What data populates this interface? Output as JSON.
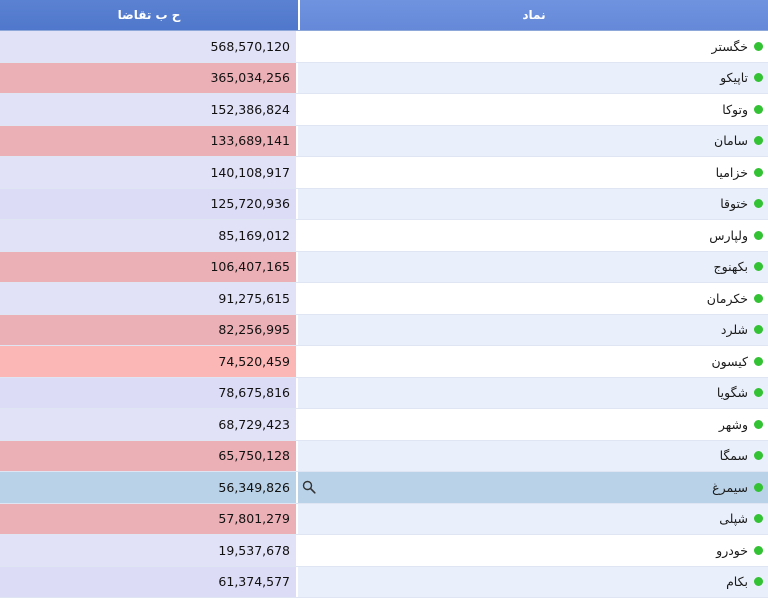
{
  "header": {
    "bid_col": "ح ب تقاضا",
    "symbol_col": "نماد"
  },
  "rows": [
    {
      "symbol": "خگستر",
      "bid": "568,570,120",
      "tone": "lav"
    },
    {
      "symbol": "تاپیکو",
      "bid": "365,034,256",
      "tone": "red"
    },
    {
      "symbol": "وتوکا",
      "bid": "152,386,824",
      "tone": "lav"
    },
    {
      "symbol": "سامان",
      "bid": "133,689,141",
      "tone": "red"
    },
    {
      "symbol": "خزامیا",
      "bid": "140,108,917",
      "tone": "lav"
    },
    {
      "symbol": "ختوقا",
      "bid": "125,720,936",
      "tone": "lav2"
    },
    {
      "symbol": "ولپارس",
      "bid": "85,169,012",
      "tone": "lav"
    },
    {
      "symbol": "بکهنوج",
      "bid": "106,407,165",
      "tone": "red"
    },
    {
      "symbol": "خکرمان",
      "bid": "91,275,615",
      "tone": "lav"
    },
    {
      "symbol": "شلرد",
      "bid": "82,256,995",
      "tone": "red"
    },
    {
      "symbol": "کیسون",
      "bid": "74,520,459",
      "tone": "pink"
    },
    {
      "symbol": "شگویا",
      "bid": "78,675,816",
      "tone": "lav2"
    },
    {
      "symbol": "وشهر",
      "bid": "68,729,423",
      "tone": "lav"
    },
    {
      "symbol": "سمگا",
      "bid": "65,750,128",
      "tone": "red"
    },
    {
      "symbol": "سیمرغ",
      "bid": "56,349,826",
      "tone": "sel",
      "selected": true
    },
    {
      "symbol": "شپلی",
      "bid": "57,801,279",
      "tone": "red"
    },
    {
      "symbol": "خودرو",
      "bid": "19,537,678",
      "tone": "lav"
    },
    {
      "symbol": "بکام",
      "bid": "61,374,577",
      "tone": "lav2"
    }
  ],
  "colors": {
    "status_dot": "#33c233",
    "header_bg": "#5b82d2",
    "selected_row": "#b9d2e8"
  },
  "icons": {
    "selected_row_action": "search-icon",
    "status": "status-dot-icon"
  }
}
